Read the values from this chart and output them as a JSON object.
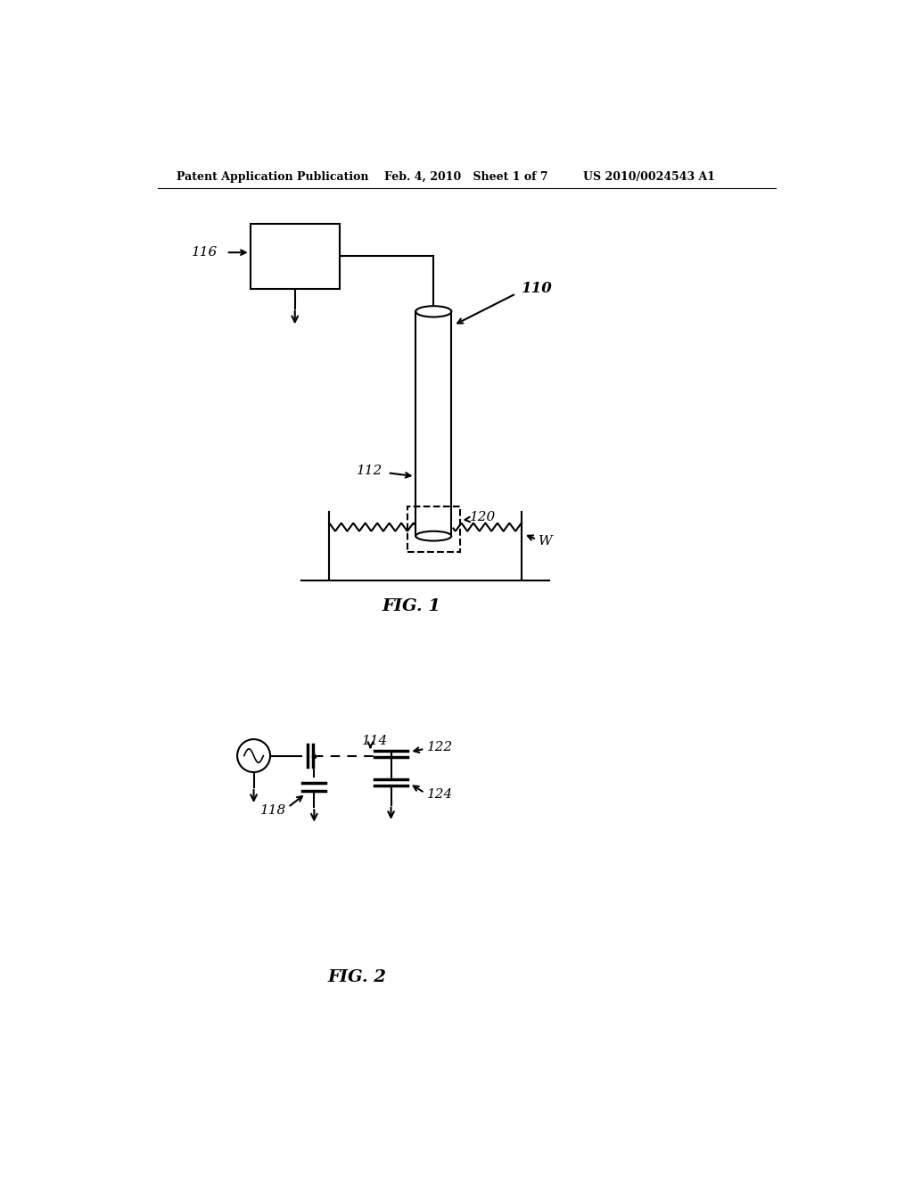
{
  "bg_color": "#ffffff",
  "line_color": "#000000",
  "header_left": "Patent Application Publication",
  "header_mid": "Feb. 4, 2010   Sheet 1 of 7",
  "header_right": "US 2010/0024543 A1",
  "fig1_label": "FIG. 1",
  "fig2_label": "FIG. 2",
  "label_116": "116",
  "label_110": "110",
  "label_112": "112",
  "label_120": "120",
  "label_W": "W",
  "label_118": "118",
  "label_114": "114",
  "label_122": "122",
  "label_124": "124"
}
